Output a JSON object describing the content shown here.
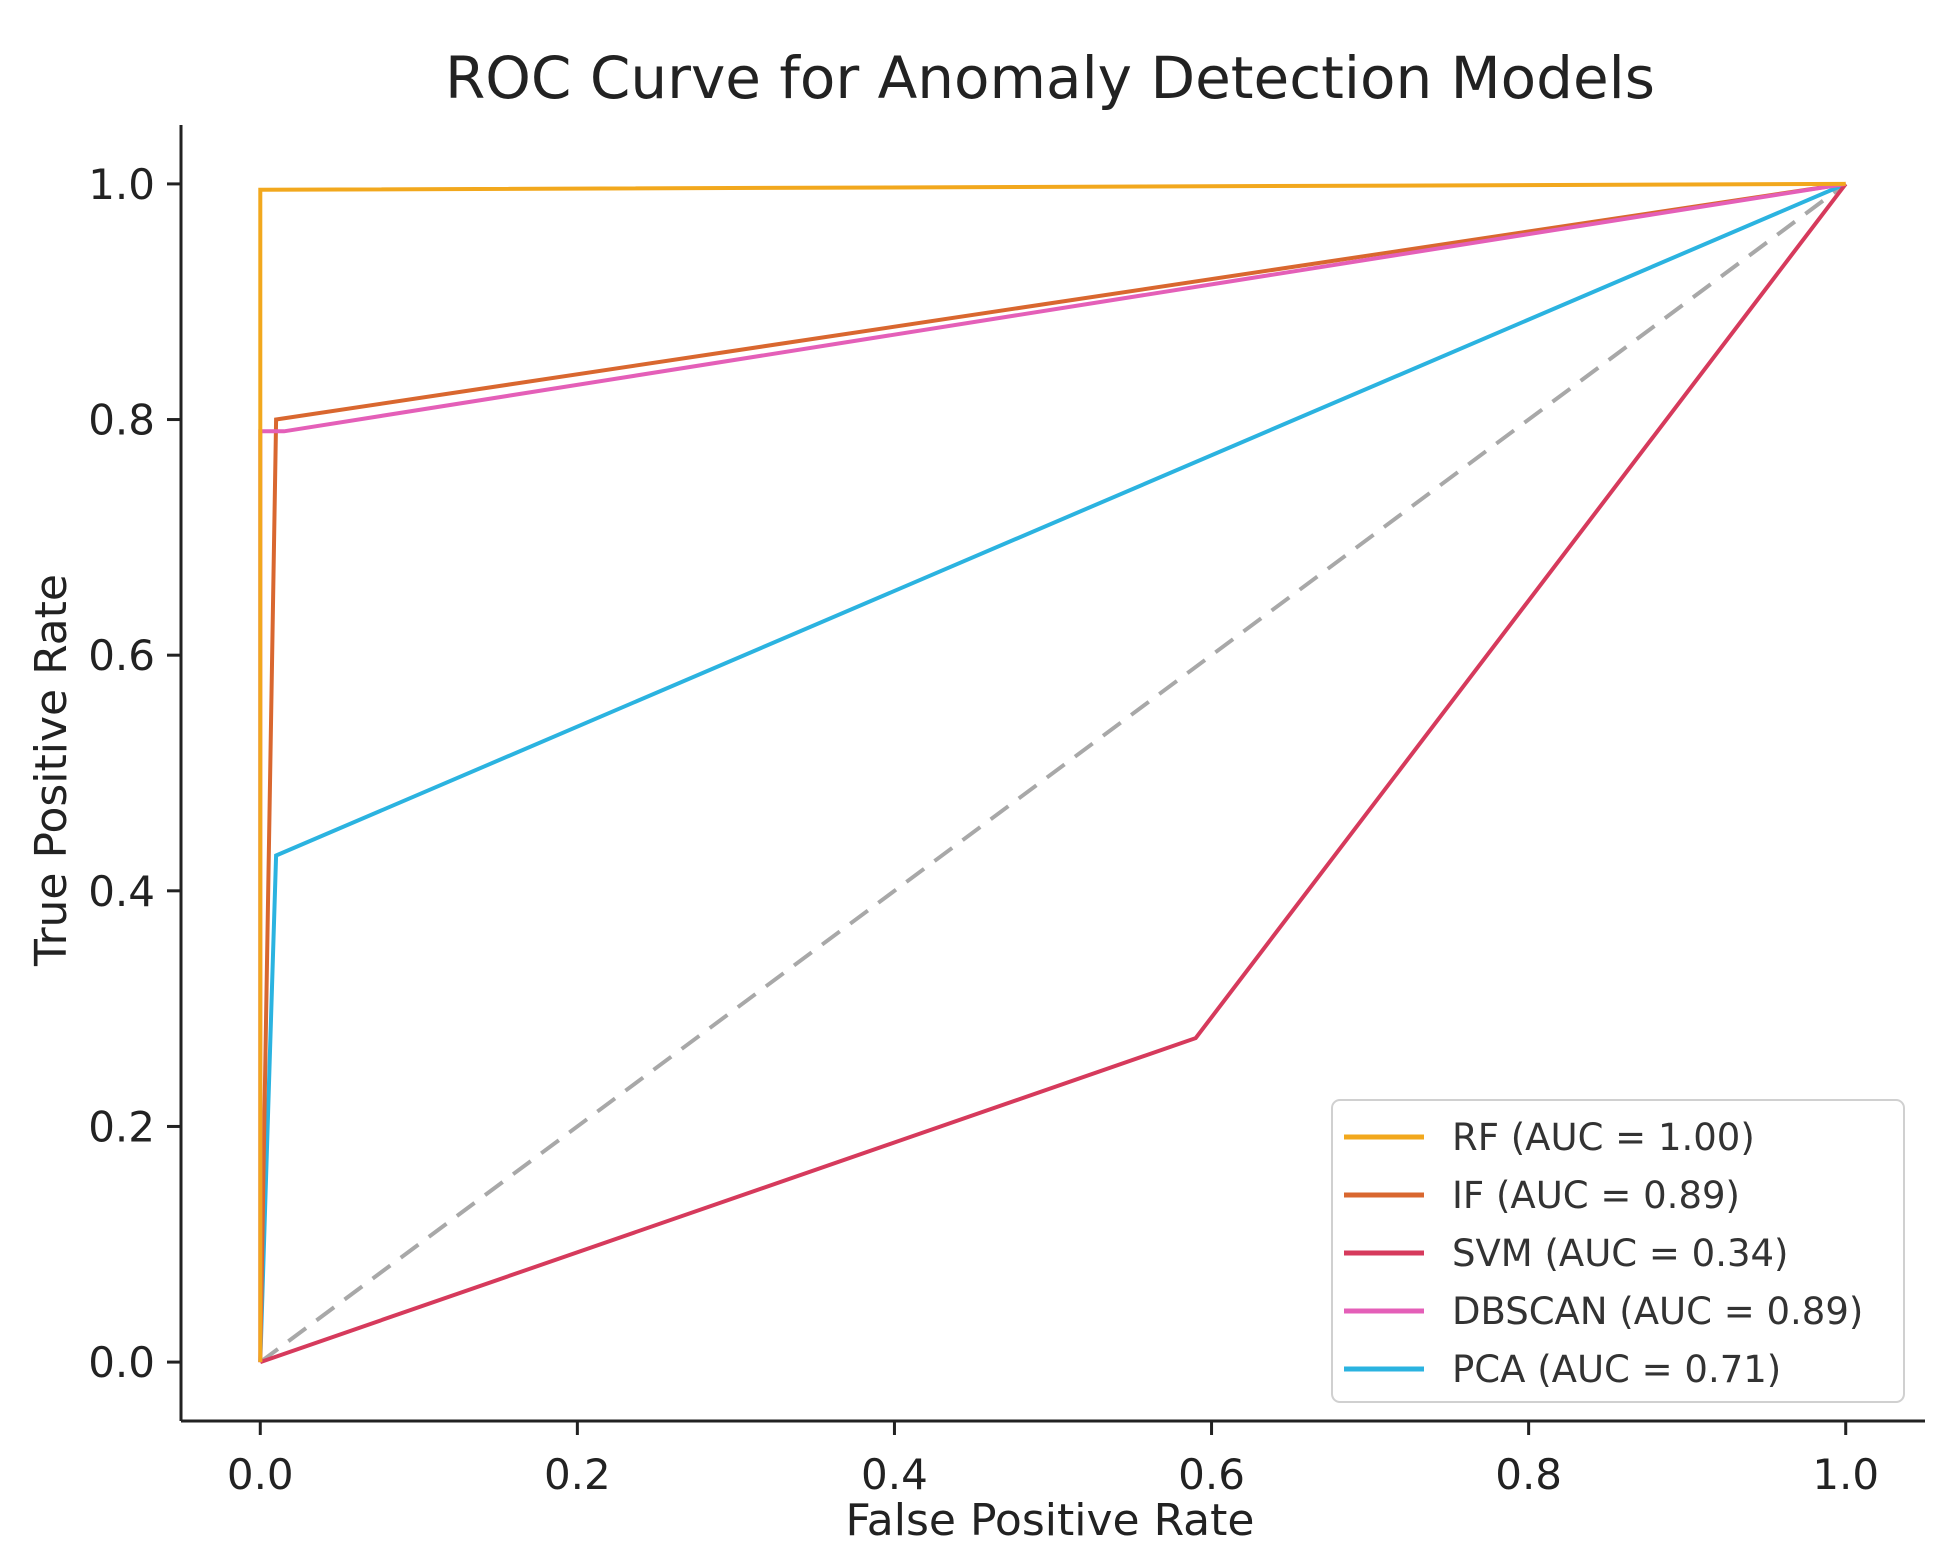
{
  "chart_data": {
    "type": "line",
    "title": "ROC Curve for Anomaly Detection Models",
    "xlabel": "False Positive Rate",
    "ylabel": "True Positive Rate",
    "xlim": [
      -0.05,
      1.05
    ],
    "ylim": [
      -0.05,
      1.05
    ],
    "xticks": [
      0.0,
      0.2,
      0.4,
      0.6,
      0.8,
      1.0
    ],
    "yticks": [
      0.0,
      0.2,
      0.4,
      0.6,
      0.8,
      1.0
    ],
    "xtick_labels": [
      "0.0",
      "0.2",
      "0.4",
      "0.6",
      "0.8",
      "1.0"
    ],
    "ytick_labels": [
      "0.0",
      "0.2",
      "0.4",
      "0.6",
      "0.8",
      "1.0"
    ],
    "grid": false,
    "legend_position": "bottom-right",
    "series": [
      {
        "name": "RF",
        "legend_label": "RF (AUC = 1.00)",
        "color": "#F2A81D",
        "x": [
          0.0,
          0.0,
          0.0,
          1.0
        ],
        "y": [
          0.0,
          0.79,
          0.995,
          1.0
        ]
      },
      {
        "name": "IF",
        "legend_label": "IF (AUC = 0.89)",
        "color": "#D9672F",
        "x": [
          0.0,
          0.01,
          1.0
        ],
        "y": [
          0.0,
          0.8,
          1.0
        ]
      },
      {
        "name": "SVM",
        "legend_label": "SVM (AUC = 0.34)",
        "color": "#D63A5C",
        "x": [
          0.0,
          0.59,
          1.0
        ],
        "y": [
          0.0,
          0.275,
          1.0
        ]
      },
      {
        "name": "DBSCAN",
        "legend_label": "DBSCAN (AUC = 0.89)",
        "color": "#E45FB8",
        "x": [
          0.0,
          0.0,
          0.015,
          1.0
        ],
        "y": [
          0.0,
          0.79,
          0.79,
          1.0
        ]
      },
      {
        "name": "PCA",
        "legend_label": "PCA (AUC = 0.71)",
        "color": "#2BB3E0",
        "x": [
          0.0,
          0.01,
          1.0
        ],
        "y": [
          0.0,
          0.43,
          1.0
        ]
      }
    ],
    "reference_line": {
      "name": "chance",
      "color": "#A8A8A8",
      "x": [
        0.0,
        1.0
      ],
      "y": [
        0.0,
        1.0
      ]
    }
  }
}
